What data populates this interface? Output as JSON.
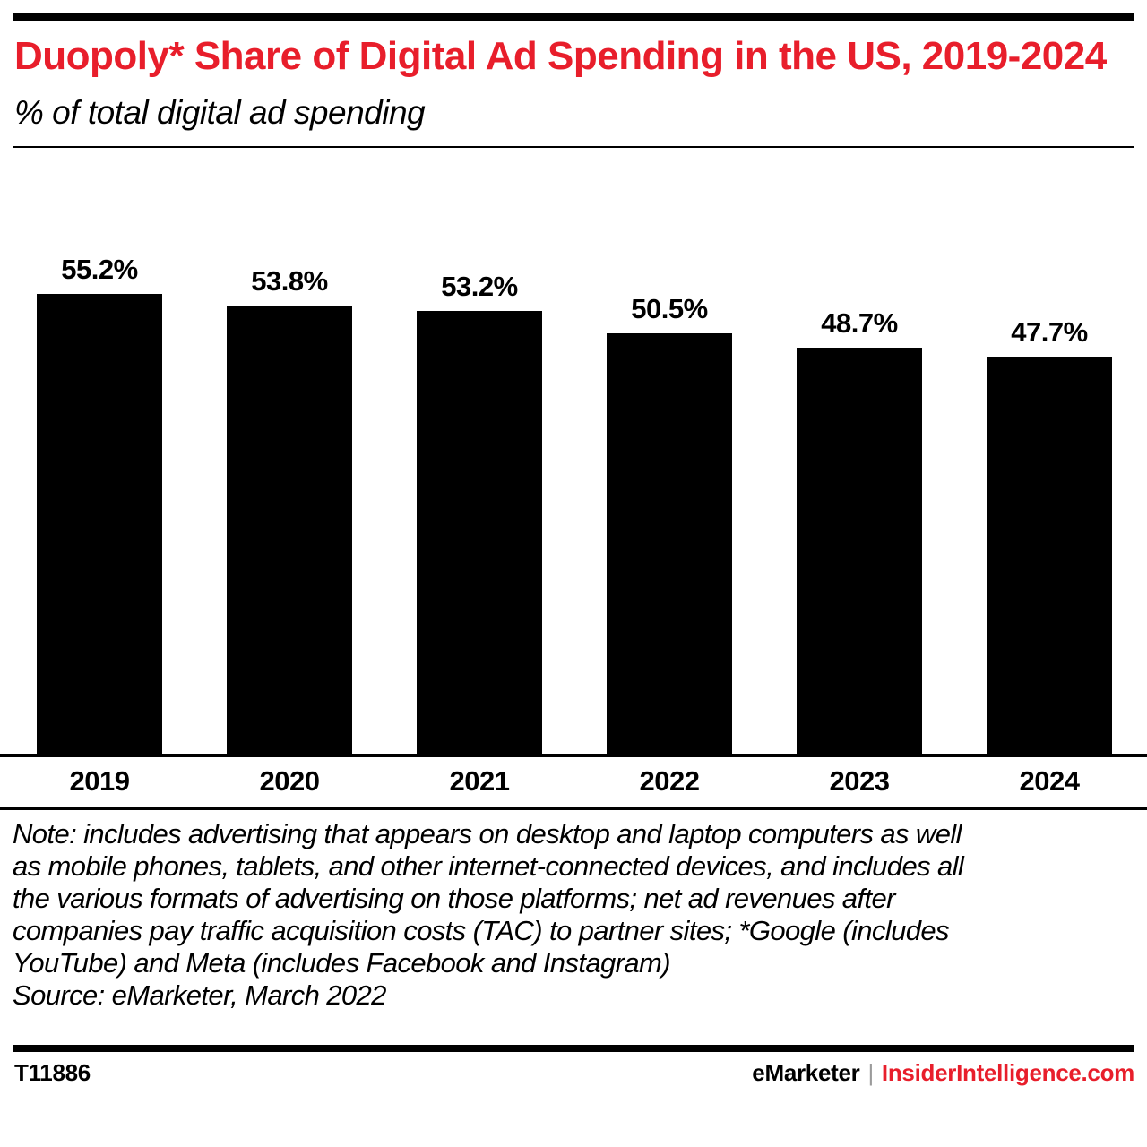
{
  "header": {
    "title": "Duopoly* Share of Digital Ad Spending in the US, 2019-2024",
    "subtitle": "% of total digital ad spending"
  },
  "chart_data": {
    "type": "bar",
    "categories": [
      "2019",
      "2020",
      "2021",
      "2022",
      "2023",
      "2024"
    ],
    "values": [
      55.2,
      53.8,
      53.2,
      50.5,
      48.7,
      47.7
    ],
    "value_labels": [
      "55.2%",
      "53.8%",
      "53.2%",
      "50.5%",
      "48.7%",
      "47.7%"
    ],
    "title": "Duopoly* Share of Digital Ad Spending in the US, 2019-2024",
    "xlabel": "",
    "ylabel": "% of total digital ad spending",
    "ylim": [
      0,
      55.2
    ],
    "grid": false,
    "legend": "none",
    "bar_color": "#000000"
  },
  "note": {
    "lines": [
      "Note: includes advertising that appears on desktop and laptop computers as well",
      "as mobile phones, tablets, and other internet-connected devices, and includes all",
      "the various formats of advertising on those platforms; net ad revenues after",
      "companies pay traffic acquisition costs (TAC) to partner sites; *Google (includes",
      "YouTube) and Meta (includes Facebook and Instagram)"
    ],
    "source": "Source: eMarketer, March 2022"
  },
  "footer": {
    "chart_id": "T11886",
    "brand": "eMarketer",
    "separator": "|",
    "site": "InsiderIntelligence.com"
  },
  "colors": {
    "accent_red": "#e81e2b",
    "bar_black": "#000000",
    "separator_gray": "#9b9b9b",
    "background": "#ffffff"
  }
}
